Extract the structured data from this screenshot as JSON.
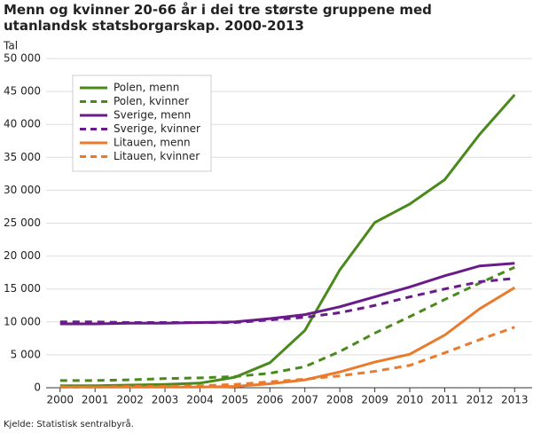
{
  "chart_data": {
    "type": "line",
    "title": "Menn og kvinner 20-66 år i dei tre største gruppene med utanlandsk statsborgarskap. 2000-2013",
    "ylabel": "Tal",
    "source": "Kjelde: Statistisk sentralbyrå.",
    "x": [
      2000,
      2001,
      2002,
      2003,
      2004,
      2005,
      2006,
      2007,
      2008,
      2009,
      2010,
      2011,
      2012,
      2013
    ],
    "xlim": [
      1999.6,
      2013.5
    ],
    "xticks": [
      2000,
      2001,
      2002,
      2003,
      2004,
      2005,
      2006,
      2007,
      2008,
      2009,
      2010,
      2011,
      2012,
      2013
    ],
    "ylim": [
      0,
      50000
    ],
    "yticks": [
      0,
      {
        "value": 5000,
        "label": "5 000"
      },
      {
        "value": 10000,
        "label": "10 000"
      },
      {
        "value": 15000,
        "label": "15 000"
      },
      {
        "value": 20000,
        "label": "20 000"
      },
      {
        "value": 25000,
        "label": "25 000"
      },
      {
        "value": 30000,
        "label": "30 000"
      },
      {
        "value": 35000,
        "label": "35 000"
      },
      {
        "value": 40000,
        "label": "40 000"
      },
      {
        "value": 45000,
        "label": "45 000"
      },
      {
        "value": 50000,
        "label": "50 000"
      }
    ],
    "grid": true,
    "legend": "upper left",
    "series": [
      {
        "name": "Polen, menn",
        "color": "#4a8a1c",
        "dashed": false,
        "values": [
          300,
          300,
          400,
          500,
          700,
          1600,
          3800,
          8700,
          17900,
          25100,
          27900,
          31600,
          38500,
          44500
        ]
      },
      {
        "name": "Polen, kvinner",
        "color": "#4a8a1c",
        "dashed": true,
        "values": [
          1100,
          1100,
          1200,
          1400,
          1500,
          1700,
          2200,
          3200,
          5500,
          8300,
          10800,
          13400,
          15900,
          18300
        ]
      },
      {
        "name": "Sverige, menn",
        "color": "#6a1b8a",
        "dashed": false,
        "values": [
          9700,
          9700,
          9800,
          9800,
          9900,
          10000,
          10500,
          11100,
          12300,
          13800,
          15300,
          17000,
          18500,
          18900
        ]
      },
      {
        "name": "Sverige, kvinner",
        "color": "#6a1b8a",
        "dashed": true,
        "values": [
          10000,
          10000,
          9900,
          9900,
          9900,
          9900,
          10300,
          10700,
          11400,
          12500,
          13800,
          15000,
          16100,
          16600
        ]
      },
      {
        "name": "Litauen, menn",
        "color": "#ea7a2c",
        "dashed": false,
        "values": [
          100,
          100,
          100,
          100,
          100,
          200,
          600,
          1200,
          2400,
          3900,
          5100,
          8000,
          12000,
          15200
        ]
      },
      {
        "name": "Litauen, kvinner",
        "color": "#ea7a2c",
        "dashed": true,
        "values": [
          100,
          100,
          200,
          200,
          300,
          500,
          900,
          1300,
          1800,
          2500,
          3400,
          5300,
          7300,
          9200
        ]
      }
    ]
  }
}
